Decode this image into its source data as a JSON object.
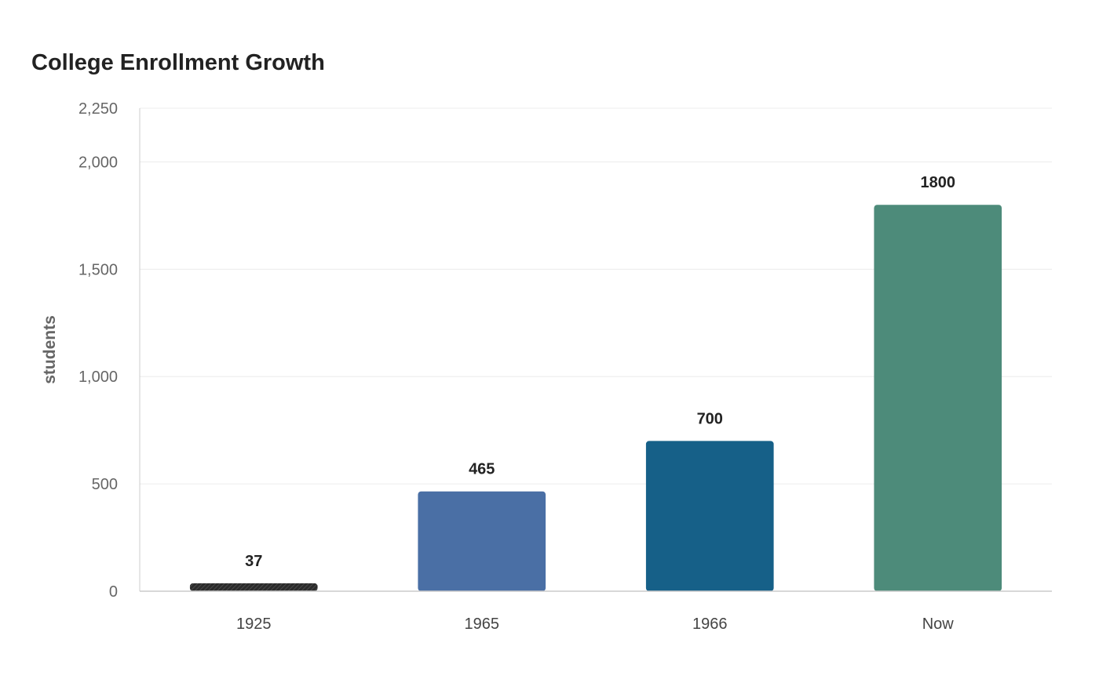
{
  "chart_data": {
    "type": "bar",
    "title": "College Enrollment Growth",
    "xlabel": "",
    "ylabel": "students",
    "categories": [
      "1925",
      "1965",
      "1966",
      "Now"
    ],
    "values": [
      37,
      465,
      700,
      1800
    ],
    "data_labels": [
      "37",
      "465",
      "700",
      "1800"
    ],
    "ylim": [
      0,
      2250
    ],
    "yticks": [
      0,
      500,
      1000,
      1500,
      2000,
      2250
    ],
    "ytick_labels": [
      "0",
      "500",
      "1,000",
      "1,500",
      "2,000",
      "2,250"
    ],
    "colors": [
      "#2b2b2b",
      "#4a6fa5",
      "#166088",
      "#4d8b7a"
    ],
    "grid": true,
    "legend": "none"
  }
}
